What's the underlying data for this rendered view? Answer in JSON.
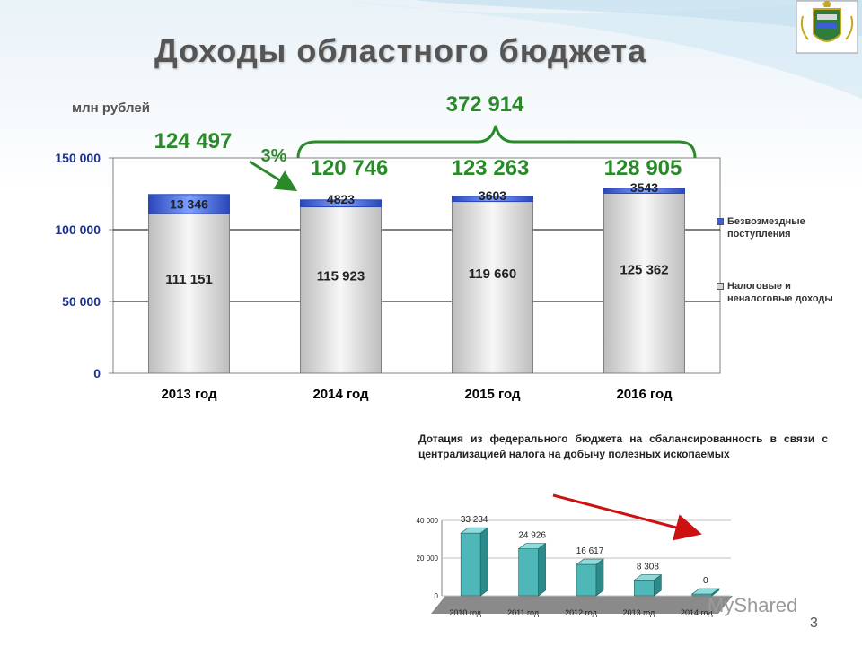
{
  "slide": {
    "title": "Доходы областного бюджета",
    "unit": "млн рублей",
    "page_number": "3",
    "watermark": "MyShared"
  },
  "annotations": {
    "total_2013": "124 497",
    "growth_pct": "3%",
    "total_2014": "120 746",
    "total_2015": "123 263",
    "total_2016": "128 905",
    "sum_2014_2016": "372 914"
  },
  "colors": {
    "tax_bar": "#d4d4d4",
    "transfer_bar": "#3a5fd8",
    "total_text": "#2a8a2a",
    "brace": "#2a8a2a",
    "arrow_small": "#cc1111",
    "small_bar": "#4fb7b7"
  },
  "legend": {
    "transfers": "Безвозмездные поступления",
    "tax": "Налоговые и неналоговые доходы"
  },
  "dotacia_text": "Дотация из федерального бюджета на сбалансированность в связи с централизацией налога на добычу полезных ископаемых",
  "chart_data": [
    {
      "type": "bar",
      "stacked": true,
      "categories": [
        "2013 год",
        "2014 год",
        "2015 год",
        "2016 год"
      ],
      "series": [
        {
          "name": "Налоговые и неналоговые доходы",
          "values": [
            111151,
            115923,
            119660,
            125362
          ],
          "labels": [
            "111 151",
            "115 923",
            "119 660",
            "125 362"
          ]
        },
        {
          "name": "Безвозмездные поступления",
          "values": [
            13346,
            4823,
            3603,
            3543
          ],
          "labels": [
            "13 346",
            "4823",
            "3603",
            "3543"
          ]
        }
      ],
      "ylim": [
        0,
        150000
      ],
      "yticks": [
        0,
        50000,
        100000,
        150000
      ],
      "ytick_labels": [
        "0",
        "50 000",
        "100 000",
        "150 000"
      ],
      "grid": true,
      "legend_position": "right"
    },
    {
      "type": "bar",
      "categories": [
        "2010 год",
        "2011 год",
        "2012 год",
        "2013 год",
        "2014 год"
      ],
      "values": [
        33234,
        24926,
        16617,
        8308,
        0
      ],
      "labels": [
        "33 234",
        "24 926",
        "16 617",
        "8 308",
        "0"
      ],
      "ylim": [
        0,
        40000
      ],
      "yticks": [
        0,
        20000,
        40000
      ],
      "ytick_labels": [
        "0",
        "20 000",
        "40 000"
      ],
      "grid": true
    }
  ]
}
